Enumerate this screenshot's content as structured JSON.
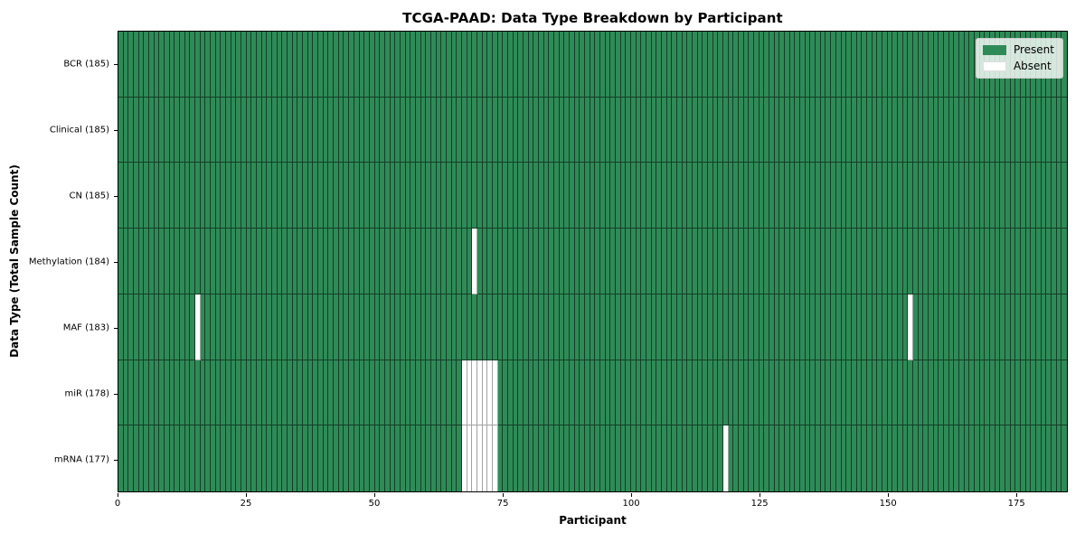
{
  "chart_data": {
    "type": "heatmap",
    "title": "TCGA-PAAD: Data Type Breakdown by Participant",
    "xlabel": "Participant",
    "ylabel": "Data Type (Total Sample Count)",
    "n_participants": 185,
    "x_range": [
      0,
      185
    ],
    "x_ticks": [
      0,
      25,
      50,
      75,
      100,
      125,
      150,
      175
    ],
    "legend_position": "upper right",
    "grid": false,
    "legend": [
      {
        "label": "Present",
        "color": "#2e8b57"
      },
      {
        "label": "Absent",
        "color": "#ffffff"
      }
    ],
    "rows": [
      {
        "name": "BCR",
        "label": "BCR (185)",
        "total": 185,
        "absent_participants": []
      },
      {
        "name": "Clinical",
        "label": "Clinical (185)",
        "total": 185,
        "absent_participants": []
      },
      {
        "name": "CN",
        "label": "CN (185)",
        "total": 185,
        "absent_participants": []
      },
      {
        "name": "Methylation",
        "label": "Methylation (184)",
        "total": 184,
        "absent_participants": [
          69
        ]
      },
      {
        "name": "MAF",
        "label": "MAF (183)",
        "total": 183,
        "absent_participants": [
          15,
          154
        ]
      },
      {
        "name": "miR",
        "label": "miR (178)",
        "total": 178,
        "absent_participants": [
          67,
          68,
          69,
          70,
          71,
          72,
          73
        ]
      },
      {
        "name": "mRNA",
        "label": "mRNA (177)",
        "total": 177,
        "absent_participants": [
          67,
          68,
          69,
          70,
          71,
          72,
          73,
          118
        ]
      }
    ],
    "colors": {
      "present": "#2e8b57",
      "absent": "#ffffff",
      "present_edge": "rgba(0,0,0,0.55)",
      "absent_edge": "#a3a3a3",
      "spine": "#000000",
      "legend_border": "#cccccc"
    }
  }
}
